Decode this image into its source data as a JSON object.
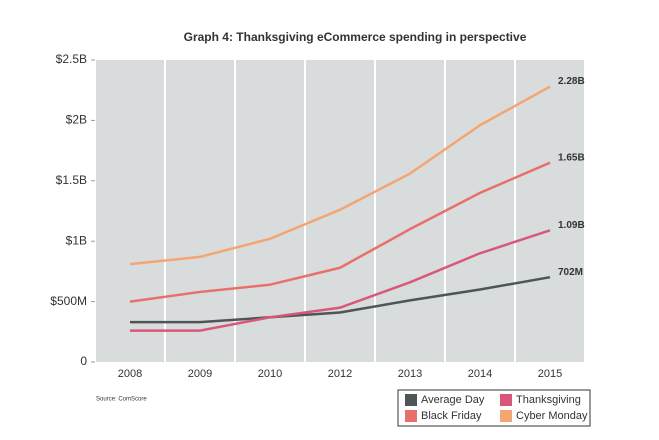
{
  "chart_data": {
    "type": "line",
    "title": "Graph 4: Thanksgiving eCommerce spending in perspective",
    "source": "Source: ComScore",
    "categories": [
      "2008",
      "2009",
      "2010",
      "2012",
      "2013",
      "2014",
      "2015"
    ],
    "ylim": [
      0,
      2500000000
    ],
    "yticks": [
      0,
      {
        "value": 500000000,
        "label": "$500M"
      },
      {
        "value": 1000000000,
        "label": "$1B"
      },
      {
        "value": 1500000000,
        "label": "$1.5B"
      },
      {
        "value": 2000000000,
        "label": "$2B"
      },
      {
        "value": 2500000000,
        "label": "$2.5B"
      }
    ],
    "series": [
      {
        "name": "Average Day",
        "color": "#4d5557",
        "values": [
          330000000,
          330000000,
          370000000,
          410000000,
          510000000,
          600000000,
          702000000
        ],
        "value_labels": [
          null,
          null,
          null,
          null,
          null,
          null,
          "702M"
        ]
      },
      {
        "name": "Thanksgiving",
        "color": "#d9587a",
        "values": [
          260000000,
          260000000,
          370000000,
          450000000,
          660000000,
          900000000,
          1090000000
        ],
        "value_labels": [
          null,
          null,
          null,
          null,
          null,
          null,
          "1.09B"
        ]
      },
      {
        "name": "Black Friday",
        "color": "#e8706a",
        "values": [
          500000000,
          580000000,
          640000000,
          780000000,
          1100000000,
          1400000000,
          1650000000
        ],
        "value_labels": [
          null,
          null,
          null,
          null,
          null,
          null,
          "1.65B"
        ]
      },
      {
        "name": "Cyber Monday",
        "color": "#f4a574",
        "values": [
          810000000,
          870000000,
          1020000000,
          1260000000,
          1560000000,
          1960000000,
          2280000000
        ],
        "value_labels": [
          null,
          null,
          null,
          null,
          null,
          null,
          "2.28B"
        ]
      }
    ]
  }
}
